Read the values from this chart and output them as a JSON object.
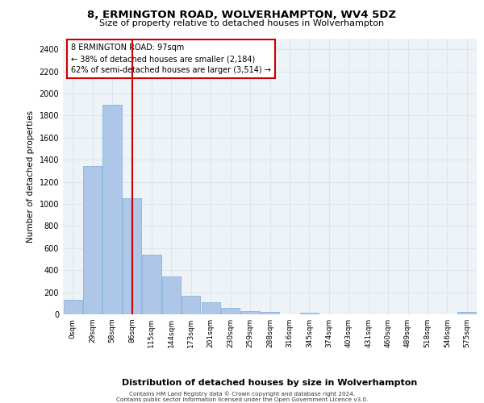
{
  "title": "8, ERMINGTON ROAD, WOLVERHAMPTON, WV4 5DZ",
  "subtitle": "Size of property relative to detached houses in Wolverhampton",
  "xlabel": "Distribution of detached houses by size in Wolverhampton",
  "ylabel": "Number of detached properties",
  "bin_labels": [
    "0sqm",
    "29sqm",
    "58sqm",
    "86sqm",
    "115sqm",
    "144sqm",
    "173sqm",
    "201sqm",
    "230sqm",
    "259sqm",
    "288sqm",
    "316sqm",
    "345sqm",
    "374sqm",
    "403sqm",
    "431sqm",
    "460sqm",
    "489sqm",
    "518sqm",
    "546sqm",
    "575sqm"
  ],
  "bar_heights": [
    130,
    1340,
    1900,
    1050,
    540,
    340,
    170,
    110,
    55,
    30,
    20,
    0,
    15,
    0,
    0,
    0,
    0,
    0,
    0,
    0,
    20
  ],
  "bar_color": "#aec6e8",
  "bar_edge_color": "#7aaed6",
  "vline_x": 3.0,
  "vline_color": "#cc0000",
  "annotation_text": "8 ERMINGTON ROAD: 97sqm\n← 38% of detached houses are smaller (2,184)\n62% of semi-detached houses are larger (3,514) →",
  "annotation_box_color": "#ffffff",
  "annotation_box_edge": "#cc0000",
  "ylim_max": 2500,
  "yticks": [
    0,
    200,
    400,
    600,
    800,
    1000,
    1200,
    1400,
    1600,
    1800,
    2000,
    2200,
    2400
  ],
  "grid_color": "#dde6f0",
  "background_color": "#eef3f8",
  "footer_line1": "Contains HM Land Registry data © Crown copyright and database right 2024.",
  "footer_line2": "Contains public sector information licensed under the Open Government Licence v3.0."
}
